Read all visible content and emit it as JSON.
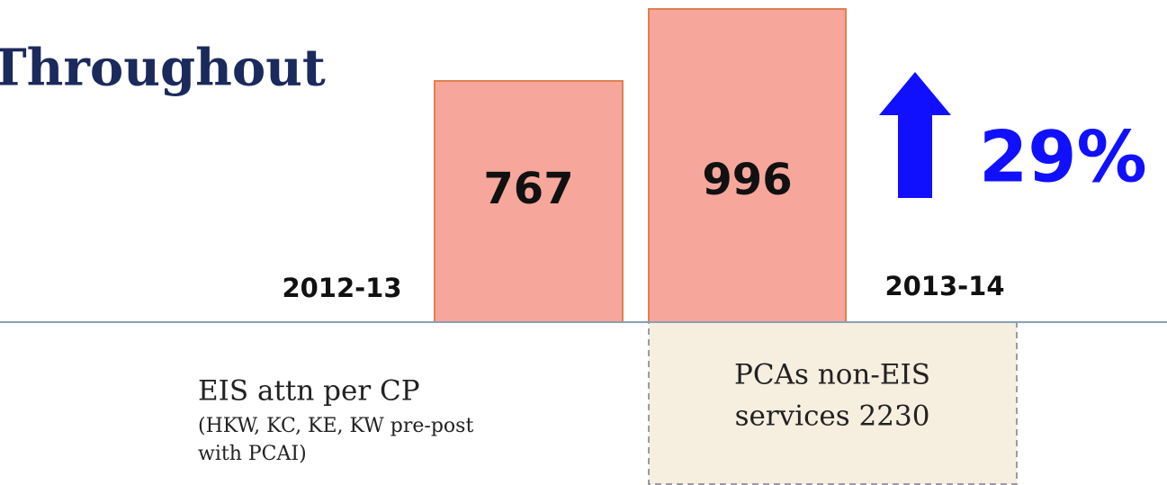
{
  "chart_data": {
    "type": "bar",
    "title": "Throughout",
    "categories": [
      "2012-13",
      "2013-14"
    ],
    "values": [
      767,
      996
    ],
    "color": "#f7a69c",
    "annotation": "29%",
    "notes": {
      "left_title": "EIS attn per CP",
      "left_detail": [
        "(HKW, KC, KE, KW pre-post",
        "with PCAI)"
      ],
      "box": [
        "PCAs non-EIS",
        "services 2230"
      ]
    }
  }
}
